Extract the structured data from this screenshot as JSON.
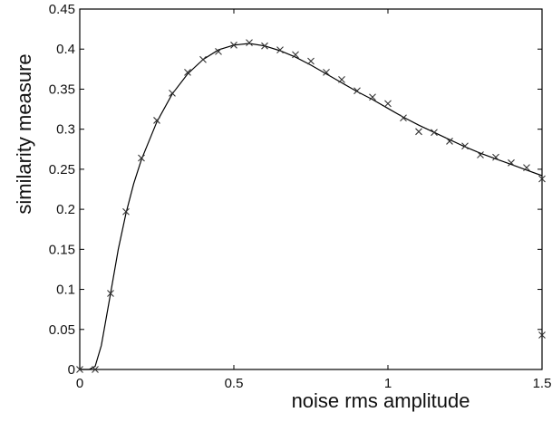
{
  "chart_data": {
    "type": "line",
    "title": "",
    "xlabel": "noise rms amplitude",
    "ylabel": "similarity measure",
    "xlim": [
      0,
      1.5
    ],
    "ylim": [
      0,
      0.45
    ],
    "xticks": [
      0,
      0.5,
      1,
      1.5
    ],
    "xtick_labels": [
      "0",
      "0.5",
      "1",
      "1.5"
    ],
    "yticks": [
      0,
      0.05,
      0.1,
      0.15,
      0.2,
      0.25,
      0.3,
      0.35,
      0.4,
      0.45
    ],
    "ytick_labels": [
      "0",
      "0.05",
      "0.1",
      "0.15",
      "0.2",
      "0.25",
      "0.3",
      "0.35",
      "0.4",
      "0.45"
    ],
    "grid": false,
    "series": [
      {
        "style": "markers-x",
        "x": [
          0,
          0.05,
          0.1,
          0.15,
          0.2,
          0.25,
          0.3,
          0.35,
          0.4,
          0.45,
          0.5,
          0.55,
          0.6,
          0.65,
          0.7,
          0.75,
          0.8,
          0.85,
          0.9,
          0.95,
          1.0,
          1.05,
          1.1,
          1.15,
          1.2,
          1.25,
          1.3,
          1.35,
          1.4,
          1.45,
          1.5,
          1.5
        ],
        "y": [
          0,
          0,
          0.095,
          0.197,
          0.264,
          0.311,
          0.345,
          0.371,
          0.387,
          0.397,
          0.405,
          0.408,
          0.404,
          0.399,
          0.393,
          0.385,
          0.371,
          0.362,
          0.348,
          0.34,
          0.332,
          0.314,
          0.297,
          0.296,
          0.285,
          0.279,
          0.268,
          0.265,
          0.258,
          0.252,
          0.238,
          0.043
        ]
      },
      {
        "style": "line",
        "x": [
          0,
          0.03,
          0.05,
          0.07,
          0.1,
          0.125,
          0.15,
          0.175,
          0.2,
          0.25,
          0.3,
          0.35,
          0.4,
          0.45,
          0.5,
          0.55,
          0.6,
          0.65,
          0.7,
          0.75,
          0.8,
          0.85,
          0.9,
          0.95,
          1.0,
          1.05,
          1.1,
          1.15,
          1.2,
          1.25,
          1.3,
          1.35,
          1.4,
          1.45,
          1.5
        ],
        "y": [
          0,
          0,
          0.004,
          0.03,
          0.095,
          0.15,
          0.195,
          0.232,
          0.262,
          0.309,
          0.344,
          0.369,
          0.387,
          0.399,
          0.405,
          0.407,
          0.404,
          0.398,
          0.39,
          0.38,
          0.369,
          0.358,
          0.347,
          0.337,
          0.326,
          0.315,
          0.305,
          0.296,
          0.287,
          0.278,
          0.27,
          0.263,
          0.256,
          0.249,
          0.242
        ]
      }
    ]
  }
}
